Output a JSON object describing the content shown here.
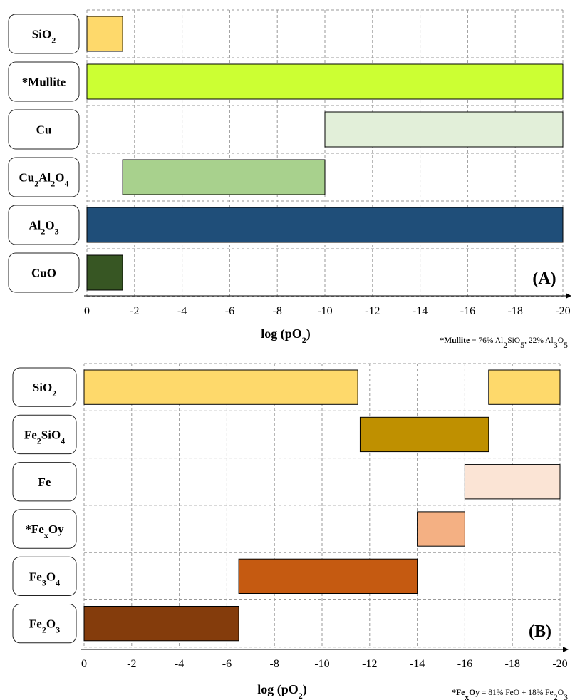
{
  "chart_data": [
    {
      "type": "bar",
      "orientation": "horizontal-range",
      "panel": "(A)",
      "xlabel": "log (pO2)",
      "xlim": [
        0,
        -20
      ],
      "xticks": [
        "0",
        "-2",
        "-4",
        "-6",
        "-8",
        "-10",
        "-12",
        "-14",
        "-16",
        "-18",
        "-20"
      ],
      "grid": true,
      "note": {
        "bold": "*Mullite =",
        "rest": " 76% Al2SiO5, 22% Al3O5"
      },
      "rows": [
        {
          "label": "SiO2",
          "ranges": [
            [
              0,
              -1.5
            ]
          ],
          "color": "#fed96b"
        },
        {
          "label": "*Mullite",
          "ranges": [
            [
              0,
              -20
            ]
          ],
          "color": "#ccff33"
        },
        {
          "label": "Cu",
          "ranges": [
            [
              -10,
              -20
            ]
          ],
          "color": "#e2efd9"
        },
        {
          "label": "Cu2Al2O4",
          "ranges": [
            [
              -1.5,
              -10
            ]
          ],
          "color": "#a8d18d"
        },
        {
          "label": "Al2O3",
          "ranges": [
            [
              0,
              -20
            ]
          ],
          "color": "#1f4e79"
        },
        {
          "label": "CuO",
          "ranges": [
            [
              0,
              -1.5
            ]
          ],
          "color": "#375623"
        }
      ]
    },
    {
      "type": "bar",
      "orientation": "horizontal-range",
      "panel": "(B)",
      "xlabel": "log (pO2)",
      "xlim": [
        0,
        -20
      ],
      "xticks": [
        "0",
        "-2",
        "-4",
        "-6",
        "-8",
        "-10",
        "-12",
        "-14",
        "-16",
        "-18",
        "-20"
      ],
      "grid": true,
      "note": {
        "bold": "*FexOy",
        "rest": " = 81% FeO + 18% Fe2O3"
      },
      "rows": [
        {
          "label": "SiO2",
          "ranges": [
            [
              0,
              -11.5
            ],
            [
              -17,
              -20
            ]
          ],
          "color": "#fed96b"
        },
        {
          "label": "Fe2SiO4",
          "ranges": [
            [
              -11.6,
              -17
            ]
          ],
          "color": "#bf9000"
        },
        {
          "label": "Fe",
          "ranges": [
            [
              -16,
              -20
            ]
          ],
          "color": "#fbe4d5"
        },
        {
          "label": "*FexOy",
          "ranges": [
            [
              -14,
              -16
            ]
          ],
          "color": "#f4b083"
        },
        {
          "label": "Fe3O4",
          "ranges": [
            [
              -6.5,
              -14
            ]
          ],
          "color": "#c55a11"
        },
        {
          "label": "Fe2O3",
          "ranges": [
            [
              0,
              -6.5
            ]
          ],
          "color": "#843c0c"
        }
      ]
    }
  ]
}
